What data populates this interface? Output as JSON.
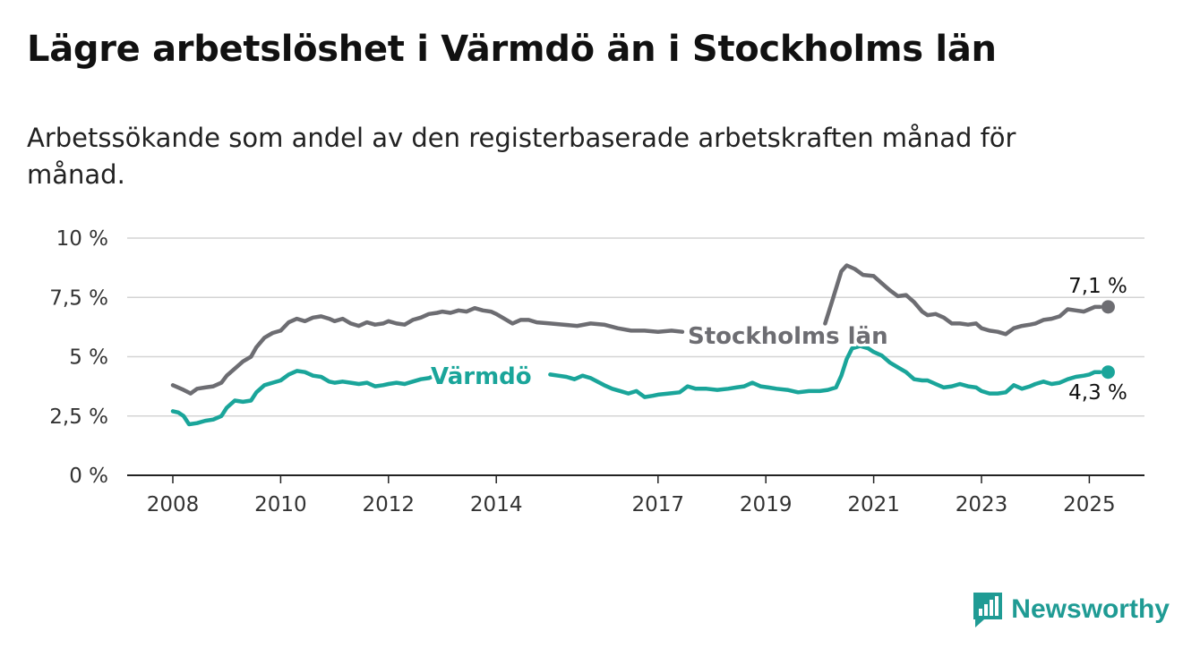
{
  "title": "Lägre arbetslöshet i Värmdö än i Stockholms län",
  "subtitle": "Arbetssökande som andel av den registerbaserade arbetskraften månad för månad.",
  "brand": {
    "name": "Newsworthy",
    "icon": "newsworthy-logo-icon",
    "color": "#1f9b94"
  },
  "chart_data": {
    "type": "line",
    "xlim": [
      2008,
      2026
    ],
    "ylim": [
      0,
      10
    ],
    "y_ticks": [
      {
        "value": 0,
        "label": "0 %"
      },
      {
        "value": 2.5,
        "label": "2,5 %"
      },
      {
        "value": 5,
        "label": "5 %"
      },
      {
        "value": 7.5,
        "label": "7,5 %"
      },
      {
        "value": 10,
        "label": "10 %"
      }
    ],
    "x_ticks": [
      {
        "value": 2008,
        "label": "2008"
      },
      {
        "value": 2010,
        "label": "2010"
      },
      {
        "value": 2012,
        "label": "2012"
      },
      {
        "value": 2014,
        "label": "2014"
      },
      {
        "value": 2017,
        "label": "2017"
      },
      {
        "value": 2019,
        "label": "2019"
      },
      {
        "value": 2021,
        "label": "2021"
      },
      {
        "value": 2023,
        "label": "2023"
      },
      {
        "value": 2025,
        "label": "2025"
      }
    ],
    "grid": true,
    "legend": "inline labels",
    "series": [
      {
        "name": "Stockholms län",
        "color": "#6d6d72",
        "end_label": "7,1 %",
        "points": [
          [
            2008.0,
            3.8
          ],
          [
            2008.1,
            3.7
          ],
          [
            2008.2,
            3.6
          ],
          [
            2008.33,
            3.45
          ],
          [
            2008.45,
            3.65
          ],
          [
            2008.6,
            3.7
          ],
          [
            2008.75,
            3.75
          ],
          [
            2008.9,
            3.9
          ],
          [
            2009.0,
            4.2
          ],
          [
            2009.15,
            4.5
          ],
          [
            2009.3,
            4.8
          ],
          [
            2009.45,
            5.0
          ],
          [
            2009.55,
            5.4
          ],
          [
            2009.7,
            5.8
          ],
          [
            2009.85,
            6.0
          ],
          [
            2010.0,
            6.1
          ],
          [
            2010.15,
            6.45
          ],
          [
            2010.3,
            6.6
          ],
          [
            2010.45,
            6.5
          ],
          [
            2010.6,
            6.65
          ],
          [
            2010.75,
            6.7
          ],
          [
            2010.9,
            6.6
          ],
          [
            2011.0,
            6.5
          ],
          [
            2011.15,
            6.6
          ],
          [
            2011.3,
            6.4
          ],
          [
            2011.45,
            6.3
          ],
          [
            2011.6,
            6.45
          ],
          [
            2011.75,
            6.35
          ],
          [
            2011.9,
            6.4
          ],
          [
            2012.0,
            6.5
          ],
          [
            2012.15,
            6.4
          ],
          [
            2012.3,
            6.35
          ],
          [
            2012.45,
            6.55
          ],
          [
            2012.6,
            6.65
          ],
          [
            2012.75,
            6.8
          ],
          [
            2012.9,
            6.85
          ],
          [
            2013.0,
            6.9
          ],
          [
            2013.15,
            6.85
          ],
          [
            2013.3,
            6.95
          ],
          [
            2013.45,
            6.9
          ],
          [
            2013.6,
            7.05
          ],
          [
            2013.75,
            6.95
          ],
          [
            2013.9,
            6.9
          ],
          [
            2014.0,
            6.8
          ],
          [
            2014.15,
            6.6
          ],
          [
            2014.3,
            6.4
          ],
          [
            2014.45,
            6.55
          ],
          [
            2014.6,
            6.55
          ],
          [
            2014.75,
            6.45
          ],
          [
            2015.0,
            6.4
          ],
          [
            2015.25,
            6.35
          ],
          [
            2015.5,
            6.3
          ],
          [
            2015.75,
            6.4
          ],
          [
            2016.0,
            6.35
          ],
          [
            2016.25,
            6.2
          ],
          [
            2016.5,
            6.1
          ],
          [
            2016.75,
            6.1
          ],
          [
            2017.0,
            6.05
          ],
          [
            2017.25,
            6.1
          ],
          [
            2017.45,
            6.05
          ]
        ],
        "points_b": [
          [
            2020.1,
            6.4
          ],
          [
            2020.25,
            7.5
          ],
          [
            2020.4,
            8.6
          ],
          [
            2020.5,
            8.85
          ],
          [
            2020.65,
            8.7
          ],
          [
            2020.8,
            8.45
          ],
          [
            2021.0,
            8.4
          ],
          [
            2021.15,
            8.1
          ],
          [
            2021.3,
            7.8
          ],
          [
            2021.45,
            7.55
          ],
          [
            2021.6,
            7.6
          ],
          [
            2021.75,
            7.3
          ],
          [
            2021.9,
            6.9
          ],
          [
            2022.0,
            6.75
          ],
          [
            2022.15,
            6.8
          ],
          [
            2022.3,
            6.65
          ],
          [
            2022.45,
            6.4
          ],
          [
            2022.6,
            6.4
          ],
          [
            2022.75,
            6.35
          ],
          [
            2022.9,
            6.4
          ],
          [
            2023.0,
            6.2
          ],
          [
            2023.15,
            6.1
          ],
          [
            2023.3,
            6.05
          ],
          [
            2023.45,
            5.95
          ],
          [
            2023.6,
            6.2
          ],
          [
            2023.75,
            6.3
          ],
          [
            2023.9,
            6.35
          ],
          [
            2024.0,
            6.4
          ],
          [
            2024.15,
            6.55
          ],
          [
            2024.3,
            6.6
          ],
          [
            2024.45,
            6.7
          ],
          [
            2024.6,
            7.0
          ],
          [
            2024.75,
            6.95
          ],
          [
            2024.9,
            6.9
          ],
          [
            2025.0,
            7.0
          ],
          [
            2025.1,
            7.1
          ],
          [
            2025.2,
            7.1
          ]
        ]
      },
      {
        "name": "Värmdö",
        "color": "#1aa59a",
        "end_label": "4,3 %",
        "points": [
          [
            2008.0,
            2.7
          ],
          [
            2008.1,
            2.65
          ],
          [
            2008.2,
            2.5
          ],
          [
            2008.3,
            2.15
          ],
          [
            2008.45,
            2.2
          ],
          [
            2008.6,
            2.3
          ],
          [
            2008.75,
            2.35
          ],
          [
            2008.9,
            2.5
          ],
          [
            2009.0,
            2.85
          ],
          [
            2009.15,
            3.15
          ],
          [
            2009.3,
            3.1
          ],
          [
            2009.45,
            3.15
          ],
          [
            2009.55,
            3.5
          ],
          [
            2009.7,
            3.8
          ],
          [
            2009.85,
            3.9
          ],
          [
            2010.0,
            4.0
          ],
          [
            2010.15,
            4.25
          ],
          [
            2010.3,
            4.4
          ],
          [
            2010.45,
            4.35
          ],
          [
            2010.6,
            4.2
          ],
          [
            2010.75,
            4.15
          ],
          [
            2010.9,
            3.95
          ],
          [
            2011.0,
            3.9
          ],
          [
            2011.15,
            3.95
          ],
          [
            2011.3,
            3.9
          ],
          [
            2011.45,
            3.85
          ],
          [
            2011.6,
            3.9
          ],
          [
            2011.75,
            3.75
          ],
          [
            2011.9,
            3.8
          ],
          [
            2012.0,
            3.85
          ],
          [
            2012.15,
            3.9
          ],
          [
            2012.3,
            3.85
          ],
          [
            2012.45,
            3.95
          ],
          [
            2012.6,
            4.05
          ],
          [
            2012.75,
            4.1
          ],
          [
            2012.8,
            4.15
          ]
        ],
        "points_b": [
          [
            2015.0,
            4.25
          ],
          [
            2015.15,
            4.2
          ],
          [
            2015.3,
            4.15
          ],
          [
            2015.45,
            4.05
          ],
          [
            2015.6,
            4.2
          ],
          [
            2015.75,
            4.1
          ],
          [
            2016.0,
            3.8
          ],
          [
            2016.15,
            3.65
          ],
          [
            2016.3,
            3.55
          ],
          [
            2016.45,
            3.45
          ],
          [
            2016.6,
            3.55
          ],
          [
            2016.75,
            3.3
          ],
          [
            2016.9,
            3.35
          ],
          [
            2017.0,
            3.4
          ],
          [
            2017.2,
            3.45
          ],
          [
            2017.4,
            3.5
          ],
          [
            2017.55,
            3.75
          ],
          [
            2017.7,
            3.65
          ],
          [
            2017.9,
            3.65
          ],
          [
            2018.1,
            3.6
          ],
          [
            2018.3,
            3.65
          ],
          [
            2018.45,
            3.7
          ],
          [
            2018.6,
            3.75
          ],
          [
            2018.75,
            3.9
          ],
          [
            2018.9,
            3.75
          ],
          [
            2019.05,
            3.7
          ],
          [
            2019.2,
            3.65
          ],
          [
            2019.4,
            3.6
          ],
          [
            2019.6,
            3.5
          ],
          [
            2019.8,
            3.55
          ],
          [
            2020.0,
            3.55
          ],
          [
            2020.15,
            3.6
          ],
          [
            2020.3,
            3.7
          ],
          [
            2020.4,
            4.2
          ],
          [
            2020.5,
            4.9
          ],
          [
            2020.6,
            5.35
          ],
          [
            2020.75,
            5.45
          ],
          [
            2020.9,
            5.35
          ],
          [
            2021.0,
            5.2
          ],
          [
            2021.15,
            5.05
          ],
          [
            2021.3,
            4.75
          ],
          [
            2021.45,
            4.55
          ],
          [
            2021.6,
            4.35
          ],
          [
            2021.75,
            4.05
          ],
          [
            2021.9,
            4.0
          ],
          [
            2022.0,
            4.0
          ],
          [
            2022.15,
            3.85
          ],
          [
            2022.3,
            3.7
          ],
          [
            2022.45,
            3.75
          ],
          [
            2022.6,
            3.85
          ],
          [
            2022.75,
            3.75
          ],
          [
            2022.9,
            3.7
          ],
          [
            2023.0,
            3.55
          ],
          [
            2023.15,
            3.45
          ],
          [
            2023.3,
            3.45
          ],
          [
            2023.45,
            3.5
          ],
          [
            2023.6,
            3.8
          ],
          [
            2023.75,
            3.65
          ],
          [
            2023.9,
            3.75
          ],
          [
            2024.0,
            3.85
          ],
          [
            2024.15,
            3.95
          ],
          [
            2024.3,
            3.85
          ],
          [
            2024.45,
            3.9
          ],
          [
            2024.6,
            4.05
          ],
          [
            2024.75,
            4.15
          ],
          [
            2024.9,
            4.2
          ],
          [
            2025.0,
            4.25
          ],
          [
            2025.1,
            4.35
          ],
          [
            2025.2,
            4.35
          ]
        ]
      }
    ]
  }
}
